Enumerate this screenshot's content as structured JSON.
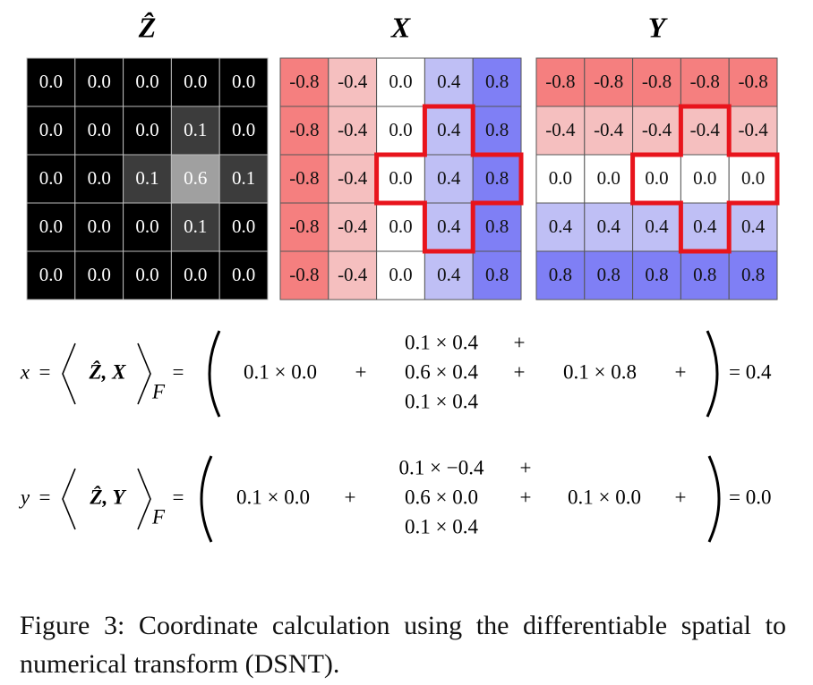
{
  "matrices": [
    {
      "title": "Ẑ",
      "rows": [
        [
          "0.0",
          "0.0",
          "0.0",
          "0.0",
          "0.0"
        ],
        [
          "0.0",
          "0.0",
          "0.0",
          "0.1",
          "0.0"
        ],
        [
          "0.0",
          "0.0",
          "0.1",
          "0.6",
          "0.1"
        ],
        [
          "0.0",
          "0.0",
          "0.0",
          "0.1",
          "0.0"
        ],
        [
          "0.0",
          "0.0",
          "0.0",
          "0.0",
          "0.0"
        ]
      ]
    },
    {
      "title": "X",
      "rows": [
        [
          "-0.8",
          "-0.4",
          "0.0",
          "0.4",
          "0.8"
        ],
        [
          "-0.8",
          "-0.4",
          "0.0",
          "0.4",
          "0.8"
        ],
        [
          "-0.8",
          "-0.4",
          "0.0",
          "0.4",
          "0.8"
        ],
        [
          "-0.8",
          "-0.4",
          "0.0",
          "0.4",
          "0.8"
        ],
        [
          "-0.8",
          "-0.4",
          "0.0",
          "0.4",
          "0.8"
        ]
      ]
    },
    {
      "title": "Y",
      "rows": [
        [
          "-0.8",
          "-0.8",
          "-0.8",
          "-0.8",
          "-0.8"
        ],
        [
          "-0.4",
          "-0.4",
          "-0.4",
          "-0.4",
          "-0.4"
        ],
        [
          "0.0",
          "0.0",
          "0.0",
          "0.0",
          "0.0"
        ],
        [
          "0.4",
          "0.4",
          "0.4",
          "0.4",
          "0.4"
        ],
        [
          "0.8",
          "0.8",
          "0.8",
          "0.8",
          "0.8"
        ]
      ]
    }
  ],
  "equations": [
    {
      "var": "x",
      "eq": "=",
      "inner": "Ẑ, X",
      "sub": "F",
      "left": "0.1 × 0.0",
      "middle": [
        "0.1 × 0.4",
        "0.6 × 0.4",
        "0.1 × 0.4"
      ],
      "right": "0.1 × 0.8",
      "plus": "+",
      "result": "= 0.4"
    },
    {
      "var": "y",
      "eq": "=",
      "inner": "Ẑ, Y",
      "sub": "F",
      "left": "0.1 × 0.0",
      "middle": [
        "0.1 × −0.4",
        "0.6 × 0.0",
        "0.1 × 0.4"
      ],
      "right": "0.1 × 0.0",
      "plus": "+",
      "result": "= 0.0"
    }
  ],
  "caption": "Figure 3: Coordinate calculation using the differentiable spatial to numerical transform (DSNT)."
}
